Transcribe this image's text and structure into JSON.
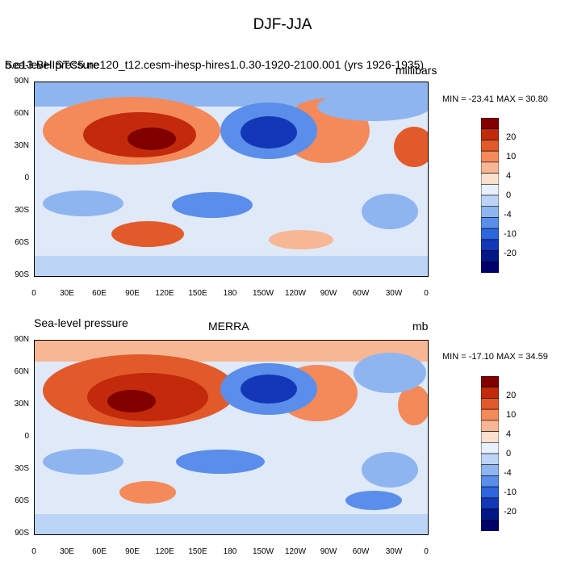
{
  "title": "DJF-JJA",
  "panels": [
    {
      "left_title": "Sea-level pressure",
      "center_title": "b.e13.BHISTC5.ne120_t12.cesm-ihesp-hires1.0.30-1920-2100.001 (yrs 1926-1935)",
      "right_title": "millibars",
      "stats": "MIN = -23.41 MAX =  30.80"
    },
    {
      "left_title": "Sea-level pressure",
      "center_title": "MERRA",
      "right_title": "mb",
      "stats": "MIN = -17.10 MAX =  34.59"
    }
  ],
  "lat_ticks": [
    "90N",
    "60N",
    "30N",
    "0",
    "30S",
    "60S",
    "90S"
  ],
  "lon_ticks": [
    "0",
    "30E",
    "60E",
    "90E",
    "120E",
    "150E",
    "180",
    "150W",
    "120W",
    "90W",
    "60W",
    "30W",
    "0"
  ],
  "colorbar": {
    "labels": [
      "20",
      "10",
      "4",
      "0",
      "-4",
      "-10",
      "-20"
    ],
    "colors": [
      "#800000",
      "#c22a0b",
      "#e25a2a",
      "#f48a5a",
      "#f7b795",
      "#fbe0cf",
      "#e7f0fb",
      "#bcd5f6",
      "#8eb5ef",
      "#5a8eea",
      "#2d66de",
      "#1238b8",
      "#001887",
      "#00006b"
    ]
  }
}
